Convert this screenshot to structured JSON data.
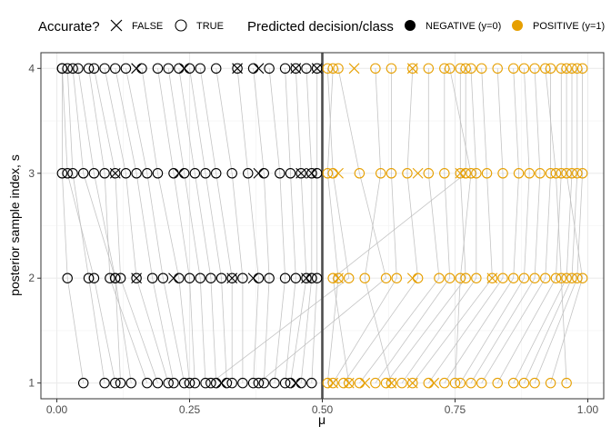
{
  "chart_data": {
    "type": "scatter",
    "xlabel": "μ",
    "ylabel": "posterior sample index, s",
    "xlim": [
      -0.03,
      1.03
    ],
    "ylim": [
      0.85,
      4.15
    ],
    "x_ticks": [
      "0.00",
      "0.25",
      "0.50",
      "0.75",
      "1.00"
    ],
    "y_ticks": [
      "1",
      "2",
      "3",
      "4"
    ],
    "threshold_line": 0.5,
    "grid": true,
    "legend_position": "top",
    "legend": {
      "shape_title": "Accurate?",
      "shape_items": [
        {
          "label": "FALSE",
          "symbol": "cross"
        },
        {
          "label": "TRUE",
          "symbol": "circle"
        }
      ],
      "color_title": "Predicted decision/class",
      "color_items": [
        {
          "label": "NEGATIVE (y=0)",
          "color": "#000000"
        },
        {
          "label": "POSITIVE (y=1)",
          "color": "#E69F00"
        }
      ]
    },
    "colors": {
      "negative": "#000000",
      "positive": "#E69F00",
      "connector": "#BEBEBE",
      "threshold": "#4D4D4D"
    },
    "observations_mu_at_s1_s2_s3_s4": [
      [
        0.05,
        0.02,
        0.01,
        0.01
      ],
      [
        0.09,
        0.06,
        0.03,
        0.02
      ],
      [
        0.11,
        0.07,
        0.02,
        0.01
      ],
      [
        0.12,
        0.11,
        0.05,
        0.03
      ],
      [
        0.14,
        0.11,
        0.07,
        0.04
      ],
      [
        0.17,
        0.1,
        0.09,
        0.06
      ],
      [
        0.19,
        0.12,
        0.11,
        0.07
      ],
      [
        0.21,
        0.15,
        0.13,
        0.09
      ],
      [
        0.22,
        0.18,
        0.15,
        0.11
      ],
      [
        0.24,
        0.2,
        0.17,
        0.13
      ],
      [
        0.25,
        0.23,
        0.19,
        0.16
      ],
      [
        0.26,
        0.25,
        0.22,
        0.19
      ],
      [
        0.28,
        0.27,
        0.24,
        0.21
      ],
      [
        0.3,
        0.29,
        0.26,
        0.23
      ],
      [
        0.32,
        0.31,
        0.28,
        0.25
      ],
      [
        0.33,
        0.33,
        0.3,
        0.27
      ],
      [
        0.35,
        0.35,
        0.33,
        0.3
      ],
      [
        0.37,
        0.38,
        0.36,
        0.34
      ],
      [
        0.39,
        0.4,
        0.39,
        0.37
      ],
      [
        0.41,
        0.43,
        0.42,
        0.4
      ],
      [
        0.43,
        0.45,
        0.44,
        0.43
      ],
      [
        0.44,
        0.47,
        0.46,
        0.45
      ],
      [
        0.46,
        0.48,
        0.48,
        0.47
      ],
      [
        0.48,
        0.49,
        0.49,
        0.49
      ],
      [
        0.29,
        0.55,
        0.52,
        0.51
      ],
      [
        0.38,
        0.62,
        0.57,
        0.53
      ],
      [
        0.52,
        0.64,
        0.63,
        0.63
      ],
      [
        0.54,
        0.68,
        0.66,
        0.67
      ],
      [
        0.57,
        0.72,
        0.7,
        0.7
      ],
      [
        0.6,
        0.74,
        0.73,
        0.73
      ],
      [
        0.62,
        0.77,
        0.76,
        0.76
      ],
      [
        0.65,
        0.79,
        0.79,
        0.78
      ],
      [
        0.67,
        0.82,
        0.81,
        0.8
      ],
      [
        0.7,
        0.84,
        0.84,
        0.83
      ],
      [
        0.73,
        0.86,
        0.87,
        0.86
      ],
      [
        0.76,
        0.88,
        0.89,
        0.88
      ],
      [
        0.78,
        0.9,
        0.91,
        0.9
      ],
      [
        0.8,
        0.92,
        0.93,
        0.93
      ],
      [
        0.83,
        0.94,
        0.95,
        0.95
      ],
      [
        0.86,
        0.96,
        0.97,
        0.97
      ],
      [
        0.88,
        0.97,
        0.98,
        0.98
      ],
      [
        0.9,
        0.98,
        0.99,
        0.99
      ],
      [
        0.93,
        0.99,
        0.96,
        0.96
      ],
      [
        0.96,
        0.95,
        0.94,
        0.92
      ],
      [
        0.55,
        0.52,
        0.77,
        0.77
      ],
      [
        0.51,
        0.53,
        0.51,
        0.52
      ],
      [
        0.75,
        0.76,
        0.78,
        0.74
      ],
      [
        0.63,
        0.58,
        0.61,
        0.6
      ]
    ],
    "cross_markers_s1_s2_s3_s4": [
      [
        0.31,
        0.45,
        0.52,
        0.55,
        0.58,
        0.63,
        0.67,
        0.71
      ],
      [
        0.15,
        0.22,
        0.33,
        0.37,
        0.47,
        0.53,
        0.67,
        0.82
      ],
      [
        0.11,
        0.23,
        0.38,
        0.46,
        0.48,
        0.53,
        0.68,
        0.76
      ],
      [
        0.15,
        0.24,
        0.34,
        0.38,
        0.45,
        0.49,
        0.56,
        0.67
      ]
    ]
  }
}
